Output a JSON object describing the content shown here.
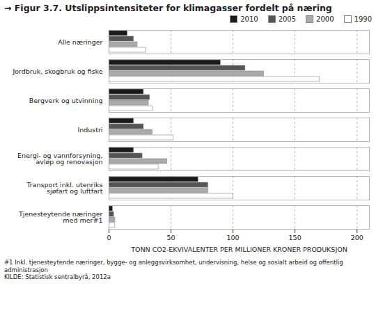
{
  "chart_data": {
    "type": "bar",
    "orientation": "horizontal",
    "title": "→ Figur 3.7. Utslippsintensiteter for klimagasser fordelt på næring",
    "xlabel": "TONN CO2-EKVIVALENTER PER MILLIONER KRONER PRODUKSJON",
    "annotations": [
      "#1 Inkl. tjenesteytende næringer, bygge- og anleggsvirksomhet, undervisning, helse og sosialt arbeid og offentlig administrasjon",
      "KILDE: Statistisk sentralbyrå, 2012a"
    ],
    "categories": [
      "Tjenesteytende næringer\nmed mer#1",
      "Transport inkl. utenriks\nsjøfart og luftfart",
      "Energi- og vannforsyning,\navløp og renovasjon",
      "Industri",
      "Bergverk og utvinning",
      "Jordbruk, skogbruk og fiske",
      "Alle næringer"
    ],
    "series": [
      {
        "name": "2010",
        "color": "#1a1a1a",
        "values": [
          3,
          72,
          20,
          20,
          28,
          90,
          15
        ]
      },
      {
        "name": "2005",
        "color": "#555555",
        "values": [
          4,
          80,
          27,
          28,
          33,
          110,
          20
        ]
      },
      {
        "name": "2000",
        "color": "#aaaaaa",
        "values": [
          5,
          80,
          47,
          35,
          32,
          125,
          23
        ]
      },
      {
        "name": "1990",
        "color": "#ffffff",
        "values": [
          5,
          100,
          40,
          52,
          35,
          170,
          30
        ]
      }
    ],
    "xlim": [
      0,
      210
    ],
    "xticks": [
      0,
      50,
      100,
      150,
      200
    ],
    "grid": true,
    "legend": "top"
  }
}
